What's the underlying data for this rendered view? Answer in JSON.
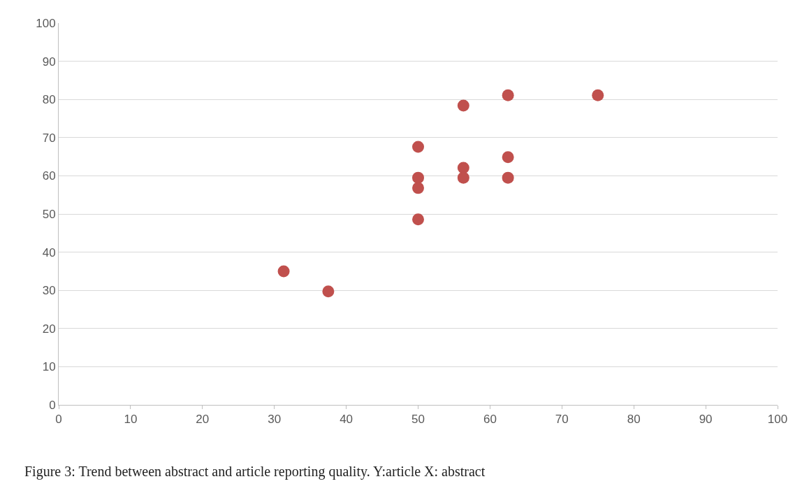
{
  "chart_data": {
    "type": "scatter",
    "x": [
      31.3,
      37.5,
      50,
      50,
      50,
      50,
      56.3,
      56.3,
      56.3,
      62.5,
      62.5,
      62.5,
      75
    ],
    "series": [
      {
        "color": "#c0504d",
        "values": [
          35.0,
          29.7,
          67.6,
          59.5,
          56.8,
          48.6,
          78.4,
          62.1,
          59.5,
          81.1,
          64.9,
          59.5,
          81.1
        ]
      }
    ],
    "xlim": [
      0,
      100
    ],
    "xticks": [
      0,
      10,
      20,
      30,
      40,
      50,
      60,
      70,
      80,
      90,
      100
    ],
    "ylim": [
      0,
      100
    ],
    "yticks": [
      0,
      10,
      20,
      30,
      40,
      50,
      60,
      70,
      80,
      90,
      100
    ],
    "grid": "y",
    "marker": "circle",
    "annotations": [
      "Figure 3: Trend between abstract and article reporting quality. Y:article X: abstract"
    ]
  }
}
